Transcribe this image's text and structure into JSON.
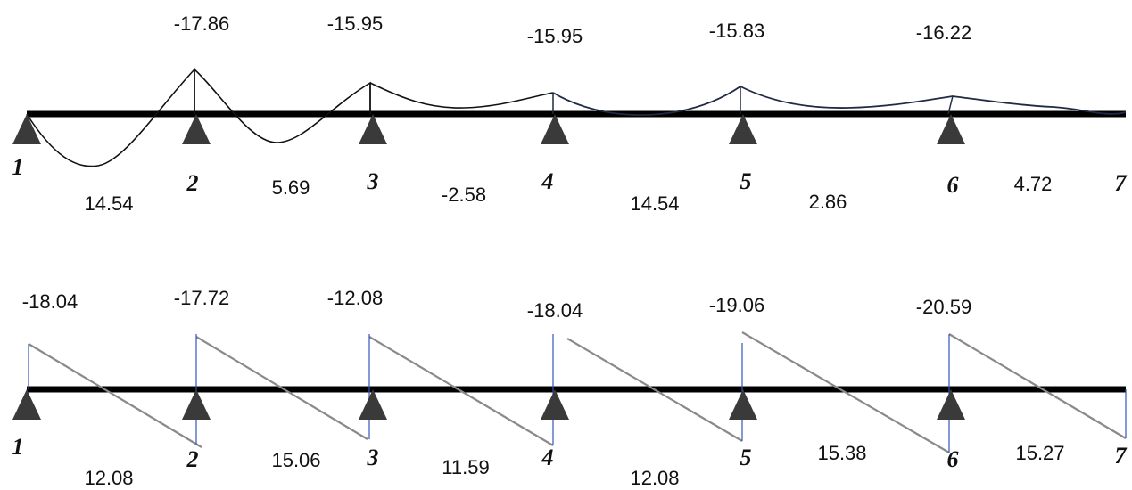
{
  "moment_diagram": {
    "support_moments": [
      "-17.86",
      "-15.95",
      "-15.95",
      "-15.83",
      "-16.22"
    ],
    "span_moments": [
      "14.54",
      "5.69",
      "-2.58",
      "14.54",
      "2.86",
      "4.72"
    ],
    "support_labels": [
      "1",
      "2",
      "3",
      "4",
      "5",
      "6",
      "7"
    ]
  },
  "shear_diagram": {
    "support_shears": [
      "-18.04",
      "-17.72",
      "-12.08",
      "-18.04",
      "-19.06",
      "-20.59"
    ],
    "span_shears": [
      "12.08",
      "15.06",
      "11.59",
      "12.08",
      "15.38",
      "15.27"
    ],
    "support_labels": [
      "1",
      "2",
      "3",
      "4",
      "5",
      "6",
      "7"
    ]
  },
  "colors": {
    "beam": "#000000",
    "curve_left": "#111111",
    "curve_right": "#1f2a44",
    "shear_line": "#8a8a8a",
    "vertical": "#3355bb",
    "support": "#3a3a3a"
  }
}
